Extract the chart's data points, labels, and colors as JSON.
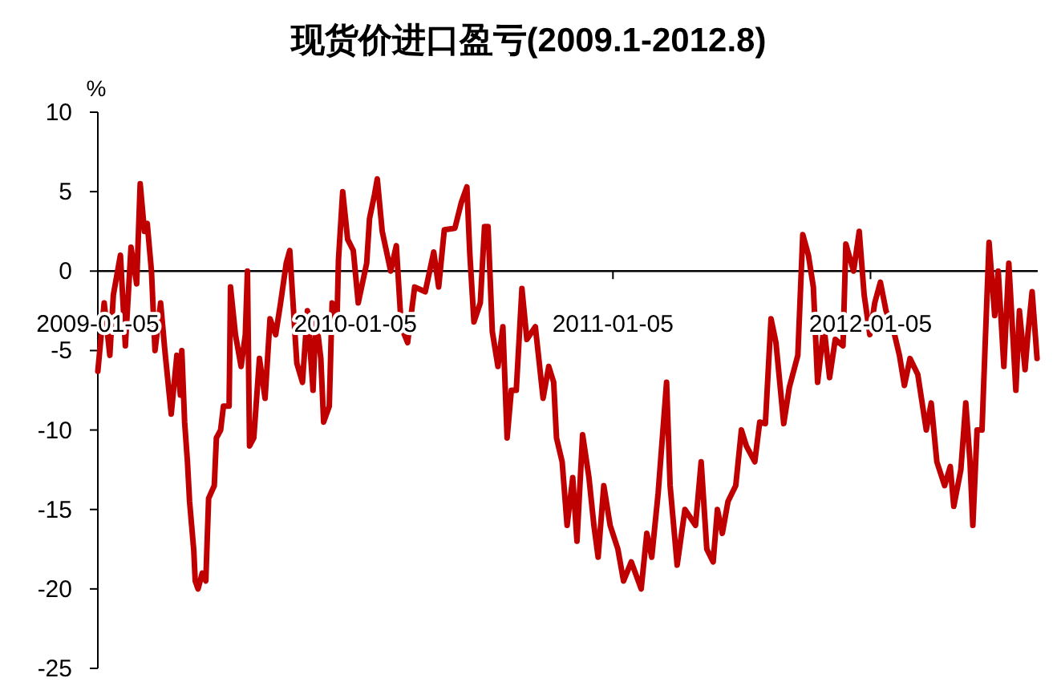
{
  "chart_data": {
    "type": "line",
    "title": "现货价进口盈亏(2009.1-2012.8)",
    "ylabel": "%",
    "xlim": [
      "2009-01-05",
      "2012-08-29"
    ],
    "ylim": [
      -25,
      10
    ],
    "xticks": [
      "2009-01-05",
      "2010-01-05",
      "2011-01-05",
      "2012-01-05"
    ],
    "yticks": [
      -25,
      -20,
      -15,
      -10,
      -5,
      0,
      5,
      10
    ],
    "x": [
      "2009-01-05",
      "2009-01-14",
      "2009-01-22",
      "2009-01-27",
      "2009-02-06",
      "2009-02-13",
      "2009-02-21",
      "2009-03-01",
      "2009-03-06",
      "2009-03-12",
      "2009-03-16",
      "2009-03-22",
      "2009-03-27",
      "2009-04-04",
      "2009-04-10",
      "2009-04-19",
      "2009-04-27",
      "2009-05-02",
      "2009-05-04",
      "2009-05-08",
      "2009-05-12",
      "2009-05-15",
      "2009-05-21",
      "2009-05-23",
      "2009-05-27",
      "2009-06-02",
      "2009-06-07",
      "2009-06-11",
      "2009-06-19",
      "2009-06-22",
      "2009-06-28",
      "2009-07-02",
      "2009-07-10",
      "2009-07-11",
      "2009-07-12",
      "2009-07-19",
      "2009-07-27",
      "2009-08-02",
      "2009-08-05",
      "2009-08-08",
      "2009-08-14",
      "2009-08-22",
      "2009-08-30",
      "2009-09-06",
      "2009-09-14",
      "2009-09-21",
      "2009-09-29",
      "2009-10-04",
      "2009-10-14",
      "2009-10-22",
      "2009-10-29",
      "2009-11-06",
      "2009-11-10",
      "2009-11-17",
      "2009-11-21",
      "2009-11-29",
      "2009-12-03",
      "2009-12-10",
      "2009-12-12",
      "2009-12-18",
      "2009-12-25",
      "2010-01-02",
      "2010-01-09",
      "2010-01-21",
      "2010-01-25",
      "2010-02-01",
      "2010-02-05",
      "2010-02-12",
      "2010-02-24",
      "2010-03-04",
      "2010-03-11",
      "2010-03-20",
      "2010-03-30",
      "2010-04-14",
      "2010-04-26",
      "2010-05-03",
      "2010-05-11",
      "2010-05-26",
      "2010-06-04",
      "2010-06-12",
      "2010-06-16",
      "2010-06-22",
      "2010-07-01",
      "2010-07-07",
      "2010-07-12",
      "2010-07-18",
      "2010-07-26",
      "2010-08-02",
      "2010-08-08",
      "2010-08-14",
      "2010-08-21",
      "2010-08-29",
      "2010-09-05",
      "2010-09-17",
      "2010-09-28",
      "2010-10-06",
      "2010-10-13",
      "2010-10-17",
      "2010-10-25",
      "2010-11-01",
      "2010-11-09",
      "2010-11-15",
      "2010-11-23",
      "2010-12-02",
      "2010-12-09",
      "2010-12-15",
      "2010-12-23",
      "2011-01-01",
      "2011-01-12",
      "2011-01-20",
      "2011-01-31",
      "2011-02-14",
      "2011-02-22",
      "2011-03-01",
      "2011-03-10",
      "2011-03-22",
      "2011-03-27",
      "2011-04-06",
      "2011-04-17",
      "2011-05-02",
      "2011-05-10",
      "2011-05-18",
      "2011-05-27",
      "2011-06-02",
      "2011-06-09",
      "2011-06-17",
      "2011-06-28",
      "2011-07-06",
      "2011-07-13",
      "2011-07-25",
      "2011-08-01",
      "2011-08-09",
      "2011-08-17",
      "2011-08-24",
      "2011-09-04",
      "2011-09-12",
      "2011-09-24",
      "2011-10-01",
      "2011-10-09",
      "2011-10-16",
      "2011-10-22",
      "2011-10-31",
      "2011-11-08",
      "2011-11-16",
      "2011-11-27",
      "2011-12-01",
      "2011-12-12",
      "2011-12-20",
      "2011-12-27",
      "2012-01-04",
      "2012-01-11",
      "2012-01-19",
      "2012-01-27",
      "2012-02-07",
      "2012-02-15",
      "2012-02-22",
      "2012-03-01",
      "2012-03-12",
      "2012-03-24",
      "2012-03-31",
      "2012-04-08",
      "2012-04-19",
      "2012-04-27",
      "2012-05-02",
      "2012-05-12",
      "2012-05-19",
      "2012-05-25",
      "2012-05-29",
      "2012-06-04",
      "2012-06-11",
      "2012-06-16",
      "2012-06-21",
      "2012-06-29",
      "2012-07-04",
      "2012-07-12",
      "2012-07-19",
      "2012-07-29",
      "2012-08-03",
      "2012-08-11",
      "2012-08-15",
      "2012-08-21",
      "2012-08-28"
    ],
    "series": [
      {
        "color": "#c00000",
        "values": [
          -6.3,
          -2,
          -5.3,
          -1.5,
          1,
          -4.7,
          1.5,
          -0.8,
          5.5,
          2.5,
          3,
          0,
          -5,
          -2,
          -5,
          -9,
          -5.3,
          -7.8,
          -5,
          -9.5,
          -12,
          -14.5,
          -17.6,
          -19.5,
          -20,
          -19,
          -19.5,
          -14.3,
          -13.5,
          -10.5,
          -10,
          -8.5,
          -8.5,
          -5,
          -1,
          -4,
          -6,
          -4,
          0,
          -11,
          -10.5,
          -5.5,
          -8,
          -3,
          -4,
          -2,
          0.5,
          1.3,
          -5.8,
          -7,
          -2.5,
          -7.5,
          -2.8,
          -5.5,
          -9.5,
          -8.5,
          -2,
          -3,
          0.7,
          5,
          2,
          1.3,
          -2,
          0.5,
          3.3,
          4.8,
          5.8,
          2.5,
          0,
          1.6,
          -3.5,
          -4.5,
          -1,
          -1.3,
          1.2,
          -1,
          2.6,
          2.7,
          4.3,
          5.3,
          1.2,
          -3.2,
          -2,
          2.8,
          2.8,
          -3.8,
          -6,
          -3.5,
          -10.5,
          -7.5,
          -7.5,
          -1.1,
          -4.3,
          -3.5,
          -8,
          -6,
          -7,
          -10.5,
          -12,
          -16,
          -13,
          -17,
          -10.3,
          -13,
          -16,
          -18,
          -13.5,
          -16,
          -17.5,
          -19.5,
          -18.3,
          -20,
          -16.5,
          -18,
          -14,
          -7,
          -13.5,
          -18.5,
          -15,
          -16,
          -12,
          -17.5,
          -18.3,
          -15,
          -16.5,
          -14.5,
          -13.5,
          -10,
          -11,
          -12,
          -9.5,
          -9.6,
          -3,
          -4.5,
          -9.6,
          -7.3,
          -5.3,
          2.3,
          1,
          -1,
          -7,
          -3.5,
          -6.7,
          -4.3,
          -4.7,
          1.7,
          0,
          2.5,
          -1.5,
          -4,
          -2,
          -0.7,
          -2.5,
          -3.8,
          -5.3,
          -7.2,
          -5.5,
          -6.5,
          -10,
          -8.3,
          -12,
          -13.5,
          -12.3,
          -14.8,
          -12.5,
          -8.3,
          -12,
          -16,
          -10,
          -10,
          -4,
          1.8,
          -2.8,
          0,
          -6,
          0.5,
          -7.5,
          -2.5,
          -6.2,
          -4,
          -1.3,
          -5.5
        ]
      }
    ]
  }
}
